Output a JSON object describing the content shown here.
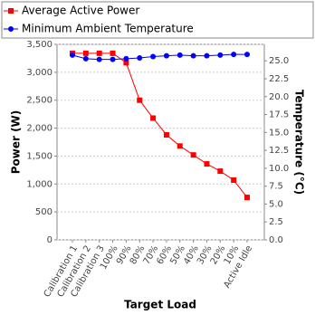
{
  "chart_data": {
    "type": "line",
    "x_label": "Target Load",
    "y_label": "Power (W)",
    "y2_label": "Temperature (°C)",
    "categories": [
      "Calibration 1",
      "Calibration 2",
      "Calibration 3",
      "100%",
      "90%",
      "80%",
      "70%",
      "60%",
      "50%",
      "40%",
      "30%",
      "20%",
      "10%",
      "Active Idle"
    ],
    "series": [
      {
        "name": "Average Active Power",
        "color": "#ff0000",
        "marker": "square",
        "values": [
          3340,
          3340,
          3340,
          3340,
          3170,
          2500,
          2180,
          1880,
          1680,
          1520,
          1360,
          1230,
          1070,
          760
        ]
      },
      {
        "name": "Minimum Ambient Temperature",
        "color": "#0000ff",
        "marker": "circle",
        "axis": "y2",
        "values": [
          25.8,
          25.3,
          25.2,
          25.2,
          25.3,
          25.4,
          25.6,
          25.7,
          25.8,
          25.7,
          25.7,
          25.8,
          25.9,
          25.9
        ]
      }
    ],
    "ylim": [
      0,
      3500
    ],
    "yticks": [
      {
        "value": 0,
        "label": "0"
      },
      {
        "value": 500,
        "label": "500"
      },
      {
        "value": 1000,
        "label": "1,000"
      },
      {
        "value": 1500,
        "label": "1,500"
      },
      {
        "value": 2000,
        "label": "2,000"
      },
      {
        "value": 2500,
        "label": "2,500"
      },
      {
        "value": 3000,
        "label": "3,000"
      },
      {
        "value": 3500,
        "label": "3,500"
      }
    ],
    "y2lim": [
      0,
      27.3
    ],
    "y2ticks": [
      {
        "value": 0,
        "label": "0.0"
      },
      {
        "value": 2.5,
        "label": "2.5"
      },
      {
        "value": 5,
        "label": "5.0"
      },
      {
        "value": 7.5,
        "label": "7.5"
      },
      {
        "value": 10,
        "label": "10.0"
      },
      {
        "value": 12.5,
        "label": "12.5"
      },
      {
        "value": 15,
        "label": "15.0"
      },
      {
        "value": 17.5,
        "label": "17.5"
      },
      {
        "value": 20,
        "label": "20.0"
      },
      {
        "value": 22.5,
        "label": "22.5"
      },
      {
        "value": 25,
        "label": "25.0"
      }
    ],
    "grid": true
  }
}
